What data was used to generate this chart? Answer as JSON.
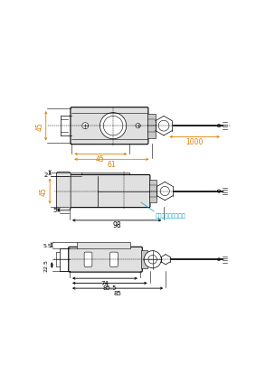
{
  "bg_color": "#ffffff",
  "lc": "#000000",
  "gc": "#e0e0e0",
  "lgc": "#c8c8c8",
  "oc": "#e08000",
  "cc": "#00a0c0",
  "fig_w": 2.83,
  "fig_h": 4.35,
  "dpi": 100,
  "v1": {
    "bx": 0.2,
    "by": 0.775,
    "bw": 0.38,
    "bh": 0.175,
    "label_45v": "45",
    "label_45h": "45",
    "label_61": "61",
    "label_1000": "1000"
  },
  "v2": {
    "bx": 0.19,
    "by": 0.455,
    "bw": 0.4,
    "bh": 0.155,
    "label_2": "2",
    "label_45": "45",
    "label_5": "5",
    "label_98": "98",
    "support_label": "サポートブラケット"
  },
  "v3": {
    "bx": 0.19,
    "by": 0.13,
    "bw": 0.36,
    "bh": 0.115,
    "label_55": "5.5",
    "label_225": "22.5",
    "label_74": "74",
    "label_855": "85.5",
    "label_85": "85"
  }
}
